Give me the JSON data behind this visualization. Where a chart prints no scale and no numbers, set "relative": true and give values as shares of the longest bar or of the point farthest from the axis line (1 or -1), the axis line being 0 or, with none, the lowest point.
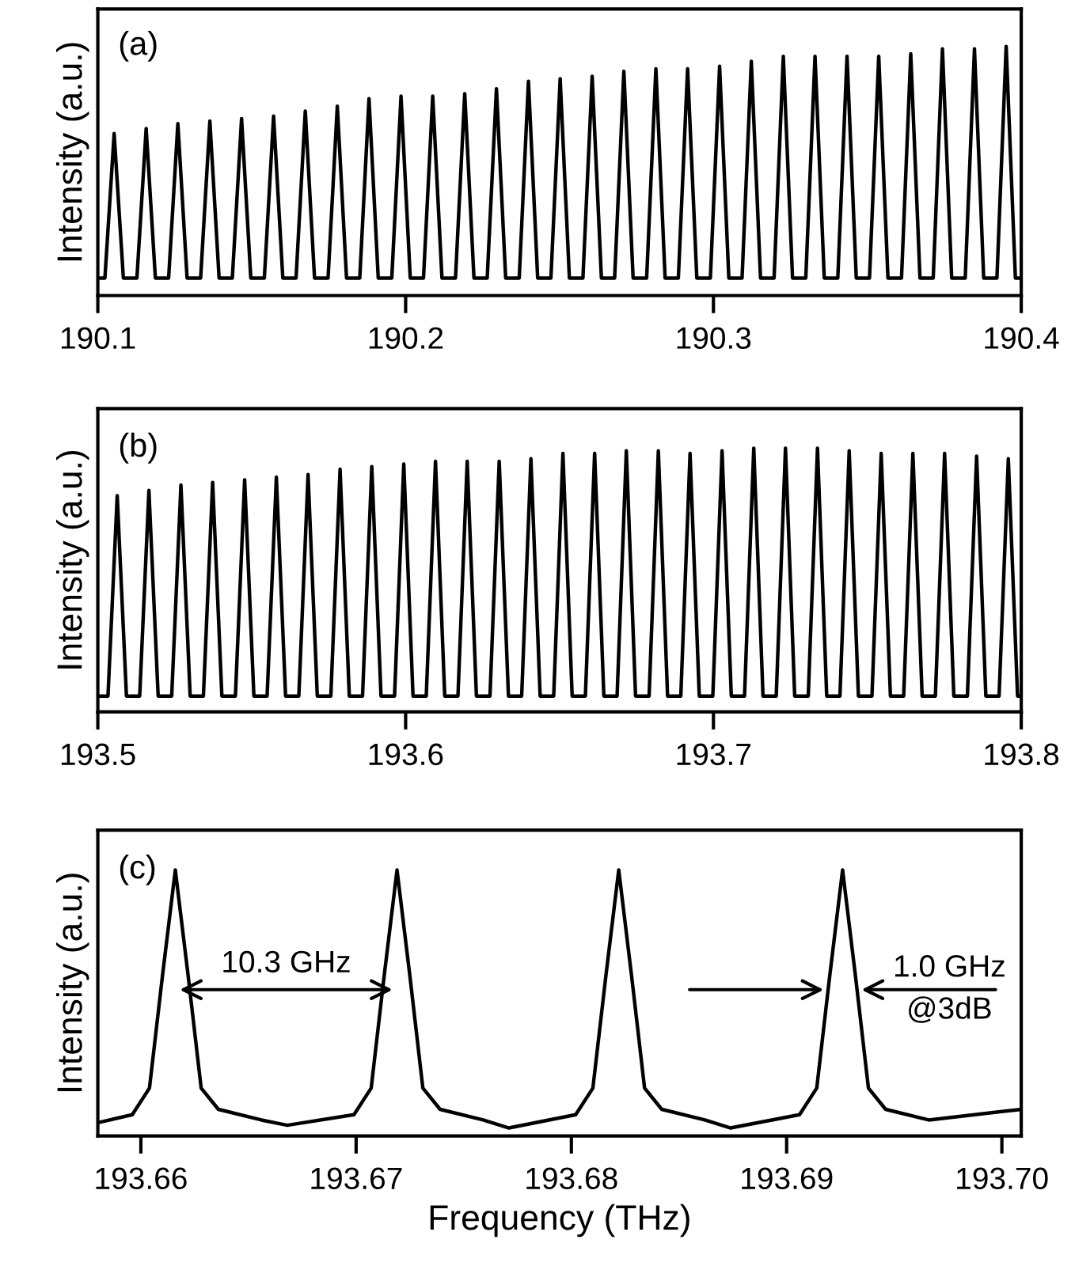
{
  "chart_data": [
    {
      "type": "line",
      "ylabel": "Intensity (a.u.)",
      "relative": true,
      "tick_labels": "x",
      "grid": false,
      "legend": false,
      "marker": "none",
      "line_style": "solid",
      "xlim": [
        190.1,
        190.4
      ],
      "xticks": [
        190.1,
        190.2,
        190.3,
        190.4
      ],
      "annotations": [
        "(a)"
      ],
      "series": [
        {
          "color": "#000000",
          "x": [
            190.1,
            190.1023,
            190.1053,
            190.1083,
            190.1127,
            190.1157,
            190.1187,
            190.123,
            190.126,
            190.129,
            190.1334,
            190.1364,
            190.1394,
            190.1437,
            190.1467,
            190.1497,
            190.1541,
            190.1571,
            190.1601,
            190.1644,
            190.1674,
            190.1704,
            190.1748,
            190.1778,
            190.1808,
            190.1851,
            190.1881,
            190.1911,
            190.1955,
            190.1985,
            190.2015,
            190.2058,
            190.2088,
            190.2118,
            190.2162,
            190.2192,
            190.2222,
            190.2265,
            190.2295,
            190.2325,
            190.2369,
            190.2399,
            190.2429,
            190.2472,
            190.2502,
            190.2532,
            190.2576,
            190.2606,
            190.2636,
            190.2679,
            190.2709,
            190.2739,
            190.2783,
            190.2813,
            190.2843,
            190.2886,
            190.2916,
            190.2946,
            190.299,
            190.302,
            190.305,
            190.3093,
            190.3123,
            190.3153,
            190.3197,
            190.3227,
            190.3257,
            190.33,
            190.333,
            190.336,
            190.3404,
            190.3434,
            190.3464,
            190.3507,
            190.3537,
            190.3567,
            190.3611,
            190.3641,
            190.3671,
            190.3714,
            190.3744,
            190.3774,
            190.3818,
            190.3848,
            190.3878,
            190.3921,
            190.3951,
            190.3981,
            190.4
          ],
          "values": [
            0.07,
            0.07,
            0.65,
            0.07,
            0.07,
            0.67,
            0.07,
            0.07,
            0.69,
            0.07,
            0.07,
            0.7,
            0.07,
            0.07,
            0.71,
            0.07,
            0.07,
            0.72,
            0.07,
            0.07,
            0.74,
            0.07,
            0.07,
            0.76,
            0.07,
            0.07,
            0.79,
            0.07,
            0.07,
            0.8,
            0.07,
            0.07,
            0.8,
            0.07,
            0.07,
            0.81,
            0.07,
            0.07,
            0.83,
            0.07,
            0.07,
            0.86,
            0.07,
            0.07,
            0.87,
            0.07,
            0.07,
            0.88,
            0.07,
            0.07,
            0.9,
            0.07,
            0.07,
            0.91,
            0.07,
            0.07,
            0.91,
            0.07,
            0.07,
            0.92,
            0.07,
            0.07,
            0.94,
            0.07,
            0.07,
            0.96,
            0.07,
            0.07,
            0.96,
            0.07,
            0.07,
            0.96,
            0.07,
            0.07,
            0.96,
            0.07,
            0.07,
            0.97,
            0.07,
            0.07,
            0.99,
            0.07,
            0.07,
            0.99,
            0.07,
            0.07,
            1,
            0.07,
            0.07
          ]
        }
      ]
    },
    {
      "type": "line",
      "ylabel": "Intensity (a.u.)",
      "relative": true,
      "tick_labels": "x",
      "grid": false,
      "legend": false,
      "marker": "none",
      "line_style": "solid",
      "xlim": [
        193.5,
        193.8
      ],
      "xticks": [
        193.5,
        193.6,
        193.7,
        193.8
      ],
      "annotations": [
        "(b)"
      ],
      "series": [
        {
          "color": "#000000",
          "x": [
            193.5,
            193.5033,
            193.5063,
            193.5093,
            193.5136,
            193.5166,
            193.5196,
            193.524,
            193.527,
            193.53,
            193.5343,
            193.5373,
            193.5403,
            193.5447,
            193.5477,
            193.5507,
            193.555,
            193.558,
            193.561,
            193.5653,
            193.5683,
            193.5713,
            193.5757,
            193.5787,
            193.5817,
            193.586,
            193.589,
            193.592,
            193.5964,
            193.5994,
            193.6024,
            193.6067,
            193.6097,
            193.6127,
            193.617,
            193.62,
            193.623,
            193.6274,
            193.6304,
            193.6334,
            193.6377,
            193.6407,
            193.6437,
            193.6481,
            193.6511,
            193.6541,
            193.6584,
            193.6614,
            193.6644,
            193.6687,
            193.6717,
            193.6747,
            193.6791,
            193.6821,
            193.6851,
            193.6894,
            193.6924,
            193.6954,
            193.6998,
            193.7028,
            193.7058,
            193.7101,
            193.7131,
            193.7161,
            193.7204,
            193.7234,
            193.7264,
            193.7308,
            193.7338,
            193.7368,
            193.7411,
            193.7441,
            193.7471,
            193.7515,
            193.7545,
            193.7575,
            193.7618,
            193.7648,
            193.7678,
            193.7721,
            193.7751,
            193.7781,
            193.7825,
            193.7855,
            193.7885,
            193.7928,
            193.7958,
            193.7988,
            193.8
          ],
          "values": [
            0.06,
            0.06,
            0.82,
            0.06,
            0.06,
            0.84,
            0.06,
            0.06,
            0.86,
            0.06,
            0.06,
            0.87,
            0.06,
            0.06,
            0.88,
            0.06,
            0.06,
            0.89,
            0.06,
            0.06,
            0.9,
            0.06,
            0.06,
            0.92,
            0.06,
            0.06,
            0.93,
            0.06,
            0.06,
            0.94,
            0.06,
            0.06,
            0.95,
            0.06,
            0.06,
            0.95,
            0.06,
            0.06,
            0.95,
            0.06,
            0.06,
            0.96,
            0.06,
            0.06,
            0.98,
            0.06,
            0.06,
            0.98,
            0.06,
            0.06,
            0.99,
            0.06,
            0.06,
            0.99,
            0.06,
            0.06,
            0.98,
            0.06,
            0.06,
            0.99,
            0.06,
            0.06,
            1,
            0.06,
            0.06,
            1,
            0.06,
            0.06,
            1,
            0.06,
            0.06,
            0.99,
            0.06,
            0.06,
            0.98,
            0.06,
            0.06,
            0.98,
            0.06,
            0.06,
            0.98,
            0.06,
            0.06,
            0.97,
            0.06,
            0.06,
            0.96,
            0.06,
            0.06
          ]
        }
      ]
    },
    {
      "type": "line",
      "xlabel": "Frequency (THz)",
      "ylabel": "Intensity (a.u.)",
      "relative": true,
      "tick_labels": "x",
      "grid": false,
      "legend": false,
      "marker": "none",
      "line_style": "solid",
      "xlim": [
        193.658,
        193.7009
      ],
      "xticks": [
        193.66,
        193.67,
        193.68,
        193.69,
        {
          "value": 193.7,
          "label": "193.70"
        }
      ],
      "annotations": [
        "(c)",
        "10.3 GHz",
        "1.0 GHz\n@3dB"
      ],
      "series": [
        {
          "color": "#000000",
          "x": [
            193.658,
            193.6596,
            193.6604,
            193.661,
            193.6616,
            193.6622,
            193.6628,
            193.6636,
            193.6656,
            193.6668,
            193.6699,
            193.6707,
            193.6713,
            193.6719,
            193.6725,
            193.6731,
            193.6739,
            193.6759,
            193.6771,
            193.6802,
            193.681,
            193.6816,
            193.6822,
            193.6828,
            193.6834,
            193.6842,
            193.6862,
            193.6874,
            193.6906,
            193.6914,
            193.692,
            193.6926,
            193.6932,
            193.6938,
            193.6946,
            193.6966,
            193.7009
          ],
          "values": [
            0.05,
            0.08,
            0.18,
            0.6,
            1,
            0.6,
            0.18,
            0.1,
            0.06,
            0.04,
            0.08,
            0.18,
            0.6,
            1,
            0.6,
            0.18,
            0.1,
            0.06,
            0.03,
            0.08,
            0.18,
            0.6,
            1,
            0.6,
            0.18,
            0.1,
            0.06,
            0.03,
            0.08,
            0.18,
            0.6,
            1,
            0.6,
            0.18,
            0.1,
            0.06,
            0.1
          ]
        }
      ]
    }
  ]
}
